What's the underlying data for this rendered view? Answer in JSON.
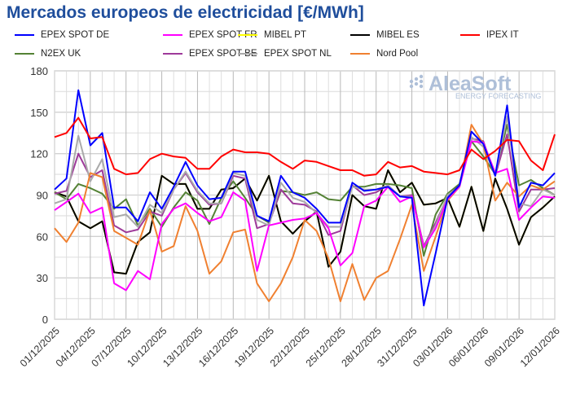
{
  "chart_data": {
    "type": "line",
    "title": "Mercados europeos de electricidad [€/MWh]",
    "xlabel": "",
    "ylabel": "",
    "ylim": [
      0,
      180
    ],
    "yticks": [
      0,
      30,
      60,
      90,
      120,
      150,
      180
    ],
    "grid": true,
    "legend_placement": "top",
    "x_tick_labels": [
      "01/12/2025",
      "04/12/2025",
      "07/12/2025",
      "10/12/2025",
      "13/12/2025",
      "16/12/2025",
      "19/12/2025",
      "22/12/2025",
      "25/12/2025",
      "28/12/2025",
      "31/12/2025",
      "03/01/2026",
      "06/01/2026",
      "09/01/2026",
      "12/01/2026"
    ],
    "x_start": "01/12/2025",
    "x_end": "12/01/2026",
    "series": [
      {
        "name": "EPEX SPOT DE",
        "color": "#0000ff",
        "values": [
          94,
          102,
          166,
          126,
          135,
          81,
          81,
          71,
          92,
          80,
          96,
          114,
          97,
          87,
          88,
          107,
          107,
          75,
          71,
          104,
          92,
          88,
          80,
          70,
          70,
          99,
          93,
          94,
          96,
          89,
          88,
          10,
          48,
          88,
          97,
          136,
          127,
          104,
          155,
          81,
          99,
          97,
          106
        ]
      },
      {
        "name": "EPEX SPOT FR",
        "color": "#ff00ff",
        "values": [
          79,
          85,
          91,
          77,
          81,
          26,
          21,
          35,
          29,
          69,
          80,
          84,
          77,
          71,
          74,
          92,
          86,
          35,
          68,
          70,
          72,
          73,
          77,
          66,
          39,
          48,
          82,
          86,
          96,
          85,
          89,
          52,
          66,
          87,
          96,
          129,
          128,
          106,
          109,
          72,
          81,
          89,
          88
        ]
      },
      {
        "name": "MIBEL PT",
        "color": "#ffff00",
        "values": [
          92,
          89,
          71,
          66,
          71,
          34,
          33,
          56,
          63,
          104,
          98,
          98,
          80,
          80,
          94,
          95,
          102,
          86,
          104,
          71,
          62,
          71,
          78,
          38,
          49,
          90,
          82,
          80,
          108,
          92,
          99,
          83,
          84,
          88,
          67,
          96,
          64,
          102,
          80,
          54,
          74,
          81,
          89
        ]
      },
      {
        "name": "MIBEL ES",
        "color": "#000000",
        "values": [
          92,
          89,
          71,
          66,
          71,
          34,
          33,
          56,
          63,
          104,
          98,
          98,
          80,
          80,
          94,
          95,
          102,
          86,
          104,
          71,
          62,
          71,
          78,
          38,
          49,
          90,
          82,
          80,
          108,
          92,
          99,
          83,
          84,
          88,
          67,
          96,
          64,
          102,
          80,
          54,
          74,
          81,
          89
        ]
      },
      {
        "name": "IPEX IT",
        "color": "#ff0000",
        "values": [
          132,
          135,
          146,
          131,
          132,
          109,
          105,
          106,
          116,
          120,
          118,
          117,
          109,
          109,
          118,
          123,
          121,
          121,
          120,
          114,
          109,
          115,
          114,
          111,
          108,
          108,
          104,
          105,
          114,
          110,
          111,
          107,
          106,
          105,
          108,
          123,
          116,
          122,
          130,
          129,
          115,
          108,
          134
        ]
      },
      {
        "name": "N2EX UK",
        "color": "#548235",
        "values": [
          92,
          87,
          98,
          95,
          91,
          80,
          87,
          68,
          80,
          67,
          81,
          92,
          86,
          69,
          88,
          100,
          88,
          75,
          70,
          93,
          92,
          90,
          92,
          87,
          86,
          96,
          96,
          98,
          98,
          97,
          95,
          46,
          76,
          91,
          98,
          129,
          118,
          105,
          141,
          97,
          101,
          95,
          90
        ]
      },
      {
        "name": "EPEX SPOT BE",
        "color": "#9e3a9a",
        "values": [
          91,
          93,
          120,
          103,
          108,
          68,
          63,
          65,
          78,
          75,
          94,
          106,
          92,
          83,
          84,
          104,
          102,
          66,
          69,
          94,
          84,
          83,
          78,
          61,
          64,
          97,
          90,
          92,
          97,
          89,
          90,
          53,
          70,
          89,
          97,
          131,
          129,
          104,
          134,
          78,
          94,
          94,
          95
        ]
      },
      {
        "name": "EPEX SPOT NL",
        "color": "#aaaaaa",
        "values": [
          84,
          87,
          133,
          100,
          116,
          74,
          76,
          67,
          83,
          77,
          94,
          107,
          93,
          84,
          84,
          106,
          104,
          72,
          68,
          99,
          88,
          85,
          77,
          67,
          67,
          96,
          94,
          94,
          97,
          89,
          89,
          52,
          68,
          90,
          96,
          132,
          125,
          104,
          147,
          84,
          82,
          94,
          90
        ]
      },
      {
        "name": "Nord Pool",
        "color": "#f08030",
        "values": [
          66,
          56,
          70,
          106,
          103,
          64,
          59,
          54,
          79,
          49,
          53,
          82,
          64,
          33,
          42,
          63,
          65,
          26,
          13,
          26,
          45,
          72,
          64,
          44,
          13,
          40,
          14,
          30,
          35,
          58,
          83,
          35,
          60,
          86,
          96,
          141,
          127,
          86,
          99,
          89,
          97,
          94,
          100
        ]
      }
    ]
  },
  "watermark": {
    "brand": "AleaSoft",
    "tagline": "ENERGY FORECASTING"
  }
}
